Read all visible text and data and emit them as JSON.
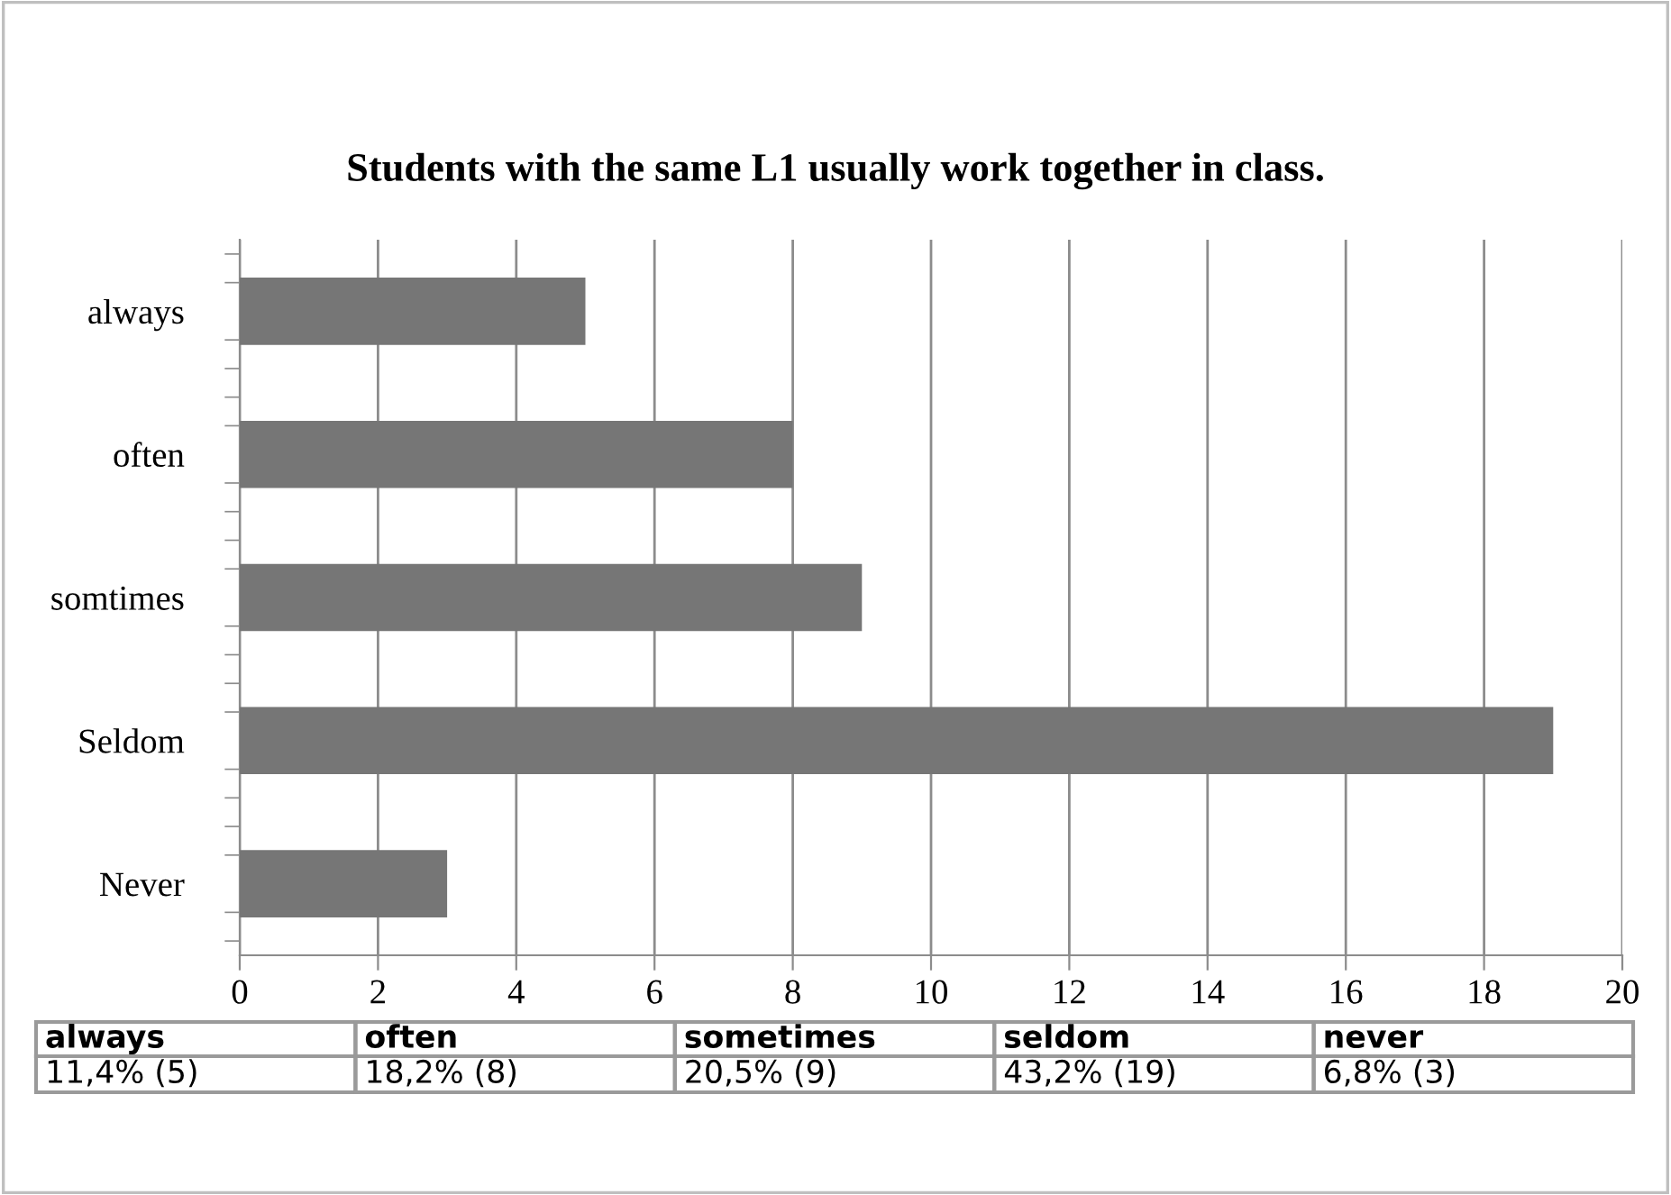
{
  "chart_data": {
    "type": "bar",
    "orientation": "horizontal",
    "title": "Students with the same L1 usually work together in class.",
    "categories": [
      "always",
      "often",
      "somtimes",
      "Seldom",
      "Never"
    ],
    "values": [
      5,
      8,
      9,
      19,
      3
    ],
    "color": "#767676",
    "annotations": [
      "always",
      "often",
      "sometimes",
      "seldom",
      "never",
      "11,4% (5)",
      "18,2% (8)",
      "20,5% (9)",
      "43,2% (19)",
      "6,8% (3)"
    ],
    "xlim": [
      0,
      20
    ],
    "xticks": [
      0,
      2,
      4,
      6,
      8,
      10,
      12,
      14,
      16,
      18,
      20
    ],
    "grid": "x",
    "legend": false
  }
}
